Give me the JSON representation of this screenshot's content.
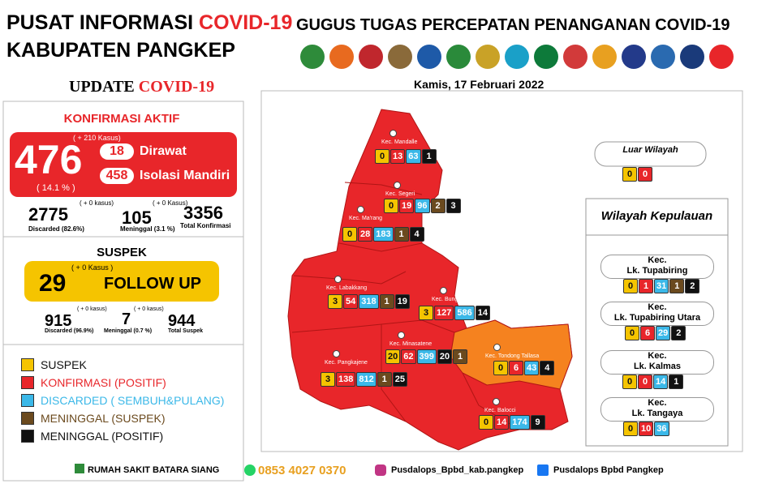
{
  "header": {
    "title_line1": "PUSAT INFORMASI",
    "title_highlight": "COVID-19",
    "title_line2": "KABUPATEN PANGKEP",
    "agency": "GUGUS TUGAS PERCEPATAN PENANGANAN COVID-19"
  },
  "update": {
    "label": "UPDATE",
    "highlight": "COVID-19"
  },
  "date": "Kamis, 17 Februari 2022",
  "konfirmasi": {
    "heading": "KONFIRMASI AKTIF",
    "delta": "( + 210 Kasus)",
    "total": 476,
    "percent": "( 14.1 % )",
    "dirawat": {
      "value": 18,
      "label": "Dirawat"
    },
    "isolasi": {
      "value": 458,
      "label": "Isolasi Mandiri"
    },
    "discarded": {
      "value": 2775,
      "delta": "( + 0 kasus)",
      "label": "Discarded (82.6%)"
    },
    "meninggal": {
      "value": 105,
      "delta": "( + 0 Kasus)",
      "label": "Meninggal (3.1 %)"
    },
    "total_konfirmasi": {
      "value": 3356,
      "label": "Total Konfirmasi"
    }
  },
  "suspek": {
    "heading": "SUSPEK",
    "delta": "( + 0 Kasus )",
    "value": 29,
    "status": "FOLLOW UP",
    "discarded": {
      "value": 915,
      "delta": "( + 0 kasus)",
      "label": "Discarded (96.9%)"
    },
    "meninggal": {
      "value": 7,
      "delta": "( + 0 kasus)",
      "label": "Meninggal (0.7 %)"
    },
    "total": {
      "value": 944,
      "label": "Total Suspek"
    }
  },
  "legend": [
    {
      "label": "SUSPEK",
      "color": "#f5c400"
    },
    {
      "label": "KONFIRMASI (POSITIF)",
      "color": "#e8262a"
    },
    {
      "label": "DISCARDED ( SEMBUH&PULANG)",
      "color": "#3bb8e8"
    },
    {
      "label": "MENINGGAL (SUSPEK)",
      "color": "#6b4a1e"
    },
    {
      "label": "MENINGGAL (POSITIF)",
      "color": "#111111"
    }
  ],
  "districts": [
    {
      "name": "Kec. Mandalle",
      "boxes": [
        {
          "value": 0,
          "color": "#f5c400"
        },
        {
          "value": 13,
          "color": "#e8262a"
        },
        {
          "value": 63,
          "color": "#3bb8e8"
        },
        {
          "value": 1,
          "color": "#111111"
        }
      ]
    },
    {
      "name": "Kec. Segeri",
      "boxes": [
        {
          "value": 0,
          "color": "#f5c400"
        },
        {
          "value": 19,
          "color": "#e8262a"
        },
        {
          "value": 96,
          "color": "#3bb8e8"
        },
        {
          "value": 2,
          "color": "#6b4a1e"
        },
        {
          "value": 3,
          "color": "#111111"
        }
      ]
    },
    {
      "name": "Kec. Ma'rang",
      "boxes": [
        {
          "value": 0,
          "color": "#f5c400"
        },
        {
          "value": 28,
          "color": "#e8262a"
        },
        {
          "value": 183,
          "color": "#3bb8e8"
        },
        {
          "value": 1,
          "color": "#6b4a1e"
        },
        {
          "value": 4,
          "color": "#111111"
        }
      ]
    },
    {
      "name": "Kec. Labakkang",
      "boxes": [
        {
          "value": 3,
          "color": "#f5c400"
        },
        {
          "value": 54,
          "color": "#e8262a"
        },
        {
          "value": 318,
          "color": "#3bb8e8"
        },
        {
          "value": 1,
          "color": "#6b4a1e"
        },
        {
          "value": 19,
          "color": "#111111"
        }
      ]
    },
    {
      "name": "Kec. Bungoro",
      "boxes": [
        {
          "value": 3,
          "color": "#f5c400"
        },
        {
          "value": 127,
          "color": "#e8262a"
        },
        {
          "value": 586,
          "color": "#3bb8e8"
        },
        {
          "value": 14,
          "color": "#111111"
        }
      ]
    },
    {
      "name": "Kec. Minasatene",
      "boxes": [
        {
          "value": 20,
          "color": "#f5c400"
        },
        {
          "value": 62,
          "color": "#e8262a"
        },
        {
          "value": 399,
          "color": "#3bb8e8"
        },
        {
          "value": 20,
          "color": "#111111"
        },
        {
          "value": 1,
          "color": "#6b4a1e"
        }
      ]
    },
    {
      "name": "Kec. Pangkajene",
      "boxes": [
        {
          "value": 3,
          "color": "#f5c400"
        },
        {
          "value": 138,
          "color": "#e8262a"
        },
        {
          "value": 812,
          "color": "#3bb8e8"
        },
        {
          "value": 1,
          "color": "#6b4a1e"
        },
        {
          "value": 25,
          "color": "#111111"
        }
      ]
    },
    {
      "name": "Kec. Tondong Tallasa",
      "boxes": [
        {
          "value": 0,
          "color": "#f5c400"
        },
        {
          "value": 6,
          "color": "#e8262a"
        },
        {
          "value": 43,
          "color": "#3bb8e8"
        },
        {
          "value": 4,
          "color": "#111111"
        }
      ]
    },
    {
      "name": "Kec. Balocci",
      "boxes": [
        {
          "value": 0,
          "color": "#f5c400"
        },
        {
          "value": 14,
          "color": "#e8262a"
        },
        {
          "value": 174,
          "color": "#3bb8e8"
        },
        {
          "value": 9,
          "color": "#111111"
        }
      ]
    }
  ],
  "luar_wilayah": {
    "name": "Luar Wilayah",
    "boxes": [
      {
        "value": 0,
        "color": "#f5c400"
      },
      {
        "value": 0,
        "color": "#e8262a"
      }
    ]
  },
  "kepulauan": {
    "heading": "Wilayah Kepulauan",
    "islands": [
      {
        "prefix": "Kec.",
        "name": "Lk. Tupabiring",
        "boxes": [
          {
            "value": 0,
            "color": "#f5c400"
          },
          {
            "value": 1,
            "color": "#e8262a"
          },
          {
            "value": 31,
            "color": "#3bb8e8"
          },
          {
            "value": 1,
            "color": "#6b4a1e"
          },
          {
            "value": 2,
            "color": "#111111"
          }
        ]
      },
      {
        "prefix": "Kec.",
        "name": "Lk. Tupabiring Utara",
        "boxes": [
          {
            "value": 0,
            "color": "#f5c400"
          },
          {
            "value": 6,
            "color": "#e8262a"
          },
          {
            "value": 29,
            "color": "#3bb8e8"
          },
          {
            "value": 2,
            "color": "#111111"
          }
        ]
      },
      {
        "prefix": "Kec.",
        "name": "Lk. Kalmas",
        "boxes": [
          {
            "value": 0,
            "color": "#f5c400"
          },
          {
            "value": 0,
            "color": "#e8262a"
          },
          {
            "value": 14,
            "color": "#3bb8e8"
          },
          {
            "value": 1,
            "color": "#111111"
          }
        ]
      },
      {
        "prefix": "Kec.",
        "name": "Lk. Tangaya",
        "boxes": [
          {
            "value": 0,
            "color": "#f5c400"
          },
          {
            "value": 10,
            "color": "#e8262a"
          },
          {
            "value": 36,
            "color": "#3bb8e8"
          }
        ]
      }
    ]
  },
  "footer": {
    "hospital": "RUMAH SAKIT BATARA SIANG",
    "whatsapp": "0853 4027 0370",
    "instagram": "Pusdalops_Bpbd_kab.pangkep",
    "facebook": "Pusdalops Bpbd Pangkep"
  }
}
